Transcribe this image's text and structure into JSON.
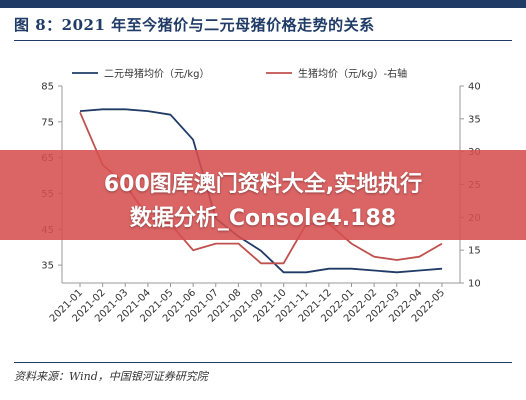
{
  "header": {
    "title": "图 8：2021 年至今猪价与二元母猪价格走势的关系"
  },
  "source_note": "资料来源：Wind，中国银河证券研究院",
  "overlay": {
    "line1": "600图库澳门资料大全,实地执行",
    "line2": "数据分析_Console4.188"
  },
  "colors": {
    "sow": "#1f3b66",
    "hog": "#c0504d",
    "axis": "#999999",
    "title": "#1f3b66",
    "banner": "#d64e4e"
  },
  "chart_data": {
    "type": "line",
    "categories": [
      "2021-01",
      "2021-02",
      "2021-03",
      "2021-04",
      "2021-05",
      "2021-06",
      "2021-07",
      "2021-08",
      "2021-09",
      "2021-10",
      "2021-11",
      "2021-12",
      "2022-01",
      "2022-02",
      "2022-03",
      "2022-04",
      "2022-05"
    ],
    "series": [
      {
        "name": "二元母猪均价（元/kg）",
        "axis": "left",
        "values": [
          78,
          78.5,
          78.5,
          78,
          77,
          70,
          48,
          43,
          39,
          33,
          33,
          34,
          34,
          33.5,
          33,
          33.5,
          34
        ]
      },
      {
        "name": "生猪均价（元/kg）-右轴",
        "axis": "right",
        "values": [
          36,
          28,
          25,
          20,
          19,
          15,
          16,
          16,
          13,
          13,
          19,
          19,
          16,
          14,
          13.5,
          14,
          16
        ]
      }
    ],
    "y_left": {
      "ticks": [
        35,
        45,
        55,
        65,
        75,
        85
      ],
      "min": 30,
      "max": 85
    },
    "y_right": {
      "ticks": [
        10,
        15,
        20,
        25,
        30,
        35,
        40
      ],
      "min": 10,
      "max": 40
    },
    "grid": false,
    "legend_position": "top"
  }
}
